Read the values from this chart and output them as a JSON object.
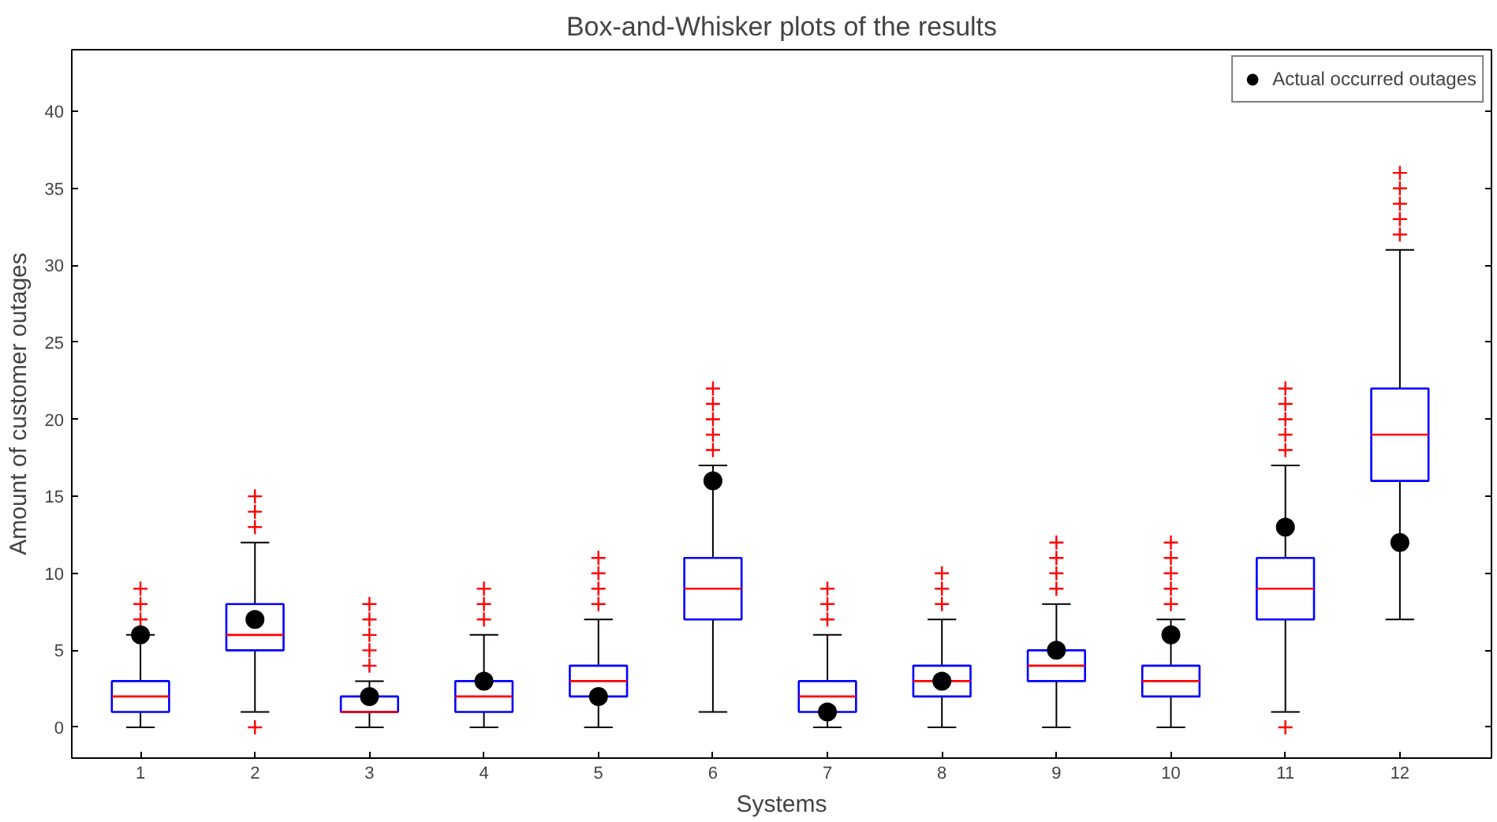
{
  "chart_data": {
    "type": "box",
    "title": "Box-and-Whisker plots of the results",
    "xlabel": "Systems",
    "ylabel": "Amount of customer outages",
    "categories": [
      "1",
      "2",
      "3",
      "4",
      "5",
      "6",
      "7",
      "8",
      "9",
      "10",
      "11",
      "12"
    ],
    "ylim": [
      -2,
      44
    ],
    "yticks": [
      0,
      5,
      10,
      15,
      20,
      25,
      30,
      35,
      40
    ],
    "grid": false,
    "legend": "top right",
    "series": [
      {
        "color": "#0000ff",
        "boxes": [
          {
            "low": 0,
            "q1": 1,
            "median": 2,
            "q3": 3,
            "high": 6,
            "outliers": [
              7,
              8,
              9
            ]
          },
          {
            "low": 1,
            "q1": 5,
            "median": 6,
            "q3": 8,
            "high": 12,
            "outliers": [
              0,
              13,
              14,
              15
            ]
          },
          {
            "low": 0,
            "q1": 1,
            "median": 1,
            "q3": 2,
            "high": 3,
            "outliers": [
              4,
              5,
              6,
              7,
              8
            ]
          },
          {
            "low": 0,
            "q1": 1,
            "median": 2,
            "q3": 3,
            "high": 6,
            "outliers": [
              7,
              8,
              9
            ]
          },
          {
            "low": 0,
            "q1": 2,
            "median": 3,
            "q3": 4,
            "high": 7,
            "outliers": [
              8,
              9,
              10,
              11
            ]
          },
          {
            "low": 1,
            "q1": 7,
            "median": 9,
            "q3": 11,
            "high": 17,
            "outliers": [
              18,
              19,
              20,
              21,
              22
            ]
          },
          {
            "low": 0,
            "q1": 1,
            "median": 2,
            "q3": 3,
            "high": 6,
            "outliers": [
              7,
              8,
              9
            ]
          },
          {
            "low": 0,
            "q1": 2,
            "median": 3,
            "q3": 4,
            "high": 7,
            "outliers": [
              8,
              9,
              10
            ]
          },
          {
            "low": 0,
            "q1": 3,
            "median": 4,
            "q3": 5,
            "high": 8,
            "outliers": [
              9,
              10,
              11,
              12
            ]
          },
          {
            "low": 0,
            "q1": 2,
            "median": 3,
            "q3": 4,
            "high": 7,
            "outliers": [
              8,
              9,
              10,
              11,
              12
            ]
          },
          {
            "low": 1,
            "q1": 7,
            "median": 9,
            "q3": 11,
            "high": 17,
            "outliers": [
              0,
              18,
              19,
              20,
              21,
              22
            ]
          },
          {
            "low": 7,
            "q1": 16,
            "median": 19,
            "q3": 22,
            "high": 31,
            "outliers": [
              32,
              33,
              34,
              35,
              36
            ]
          }
        ]
      },
      {
        "type": "scatter",
        "name": "Actual occurred outages",
        "color": "#000000",
        "marker": "circle",
        "x": [
          "1",
          "2",
          "3",
          "4",
          "5",
          "6",
          "7",
          "8",
          "9",
          "10",
          "11",
          "12"
        ],
        "values": [
          6,
          7,
          2,
          3,
          2,
          16,
          1,
          3,
          5,
          6,
          13,
          12
        ]
      }
    ]
  }
}
